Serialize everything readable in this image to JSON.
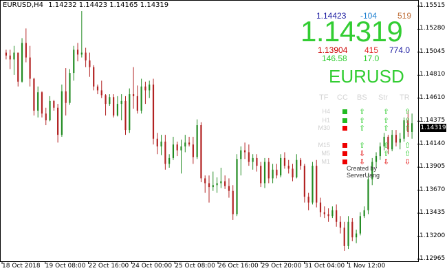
{
  "header": {
    "symbol": "EURUSD,H4",
    "ohlc": "1.14232 1.14423 1.14165 1.14319"
  },
  "price_axis": {
    "labels": [
      "1.15515",
      "1.15280",
      "1.15045",
      "1.14810",
      "1.14610",
      "1.14375",
      "1.14140",
      "1.13905",
      "1.13670",
      "1.13435",
      "1.13200",
      "1.12965"
    ],
    "current": "1.14319"
  },
  "time_axis": {
    "labels": [
      "18 Oct 2018",
      "19 Oct 08:00",
      "22 Oct 16:00",
      "24 Oct 00:00",
      "25 Oct 08:00",
      "26 Oct 16:00",
      "29 Oct 20:00",
      "31 Oct 04:00",
      "1 Nov 12:00"
    ]
  },
  "panel": {
    "ask": "1.14423",
    "change": "-104",
    "spread_pips": "519",
    "price": "1.14319",
    "low": "1.13904",
    "low_dist": "415",
    "high": "774.0",
    "range": "146.58",
    "spread": "17.0",
    "symbol": "EURUSD",
    "columns": [
      "TF",
      "CC",
      "BS",
      "Str",
      "TR"
    ],
    "timeframes": [
      {
        "tf": "H4",
        "cc": "green",
        "bs": "up",
        "str": "up",
        "tr": "up"
      },
      {
        "tf": "H1",
        "cc": "green",
        "bs": "up",
        "str": "up",
        "tr": "up"
      },
      {
        "tf": "M30",
        "cc": "red",
        "bs": "up",
        "str": "up",
        "tr": "up"
      },
      {
        "tf": "M15",
        "cc": "red",
        "bs": "up",
        "str": "up",
        "tr": "up"
      },
      {
        "tf": "M5",
        "cc": "red",
        "bs": "down",
        "str": "up",
        "tr": "up"
      },
      {
        "tf": "M1",
        "cc": "red",
        "bs": "down",
        "str": "down",
        "tr": "down"
      }
    ],
    "credit": "Created by ServerUang",
    "colors": {
      "up": "#32cd32",
      "down": "#e00000",
      "ask": "#1a1aa0",
      "change": "#1e7fd0",
      "spread_pips": "#c0703a",
      "low": "#cc0000",
      "low_dist": "#e02020",
      "high": "#1a1aa0",
      "range": "#32cd32",
      "spread": "#32cd32"
    }
  },
  "chart_data": {
    "type": "candlestick",
    "symbol": "EURUSD",
    "timeframe": "H4",
    "ylim": [
      1.129,
      1.1558
    ],
    "candles": [
      [
        1.1505,
        1.1508,
        1.1498,
        1.1502
      ],
      [
        1.1502,
        1.1508,
        1.1488,
        1.1498
      ],
      [
        1.1498,
        1.1512,
        1.1482,
        1.1505
      ],
      [
        1.1505,
        1.1505,
        1.147,
        1.1475
      ],
      [
        1.1475,
        1.152,
        1.1474,
        1.1515
      ],
      [
        1.1515,
        1.153,
        1.1495,
        1.15
      ],
      [
        1.15,
        1.1512,
        1.147,
        1.1478
      ],
      [
        1.1478,
        1.1479,
        1.144,
        1.1445
      ],
      [
        1.1445,
        1.147,
        1.1438,
        1.1464
      ],
      [
        1.1464,
        1.1465,
        1.1438,
        1.1442
      ],
      [
        1.1442,
        1.1448,
        1.143,
        1.1435
      ],
      [
        1.1435,
        1.146,
        1.1434,
        1.1455
      ],
      [
        1.1455,
        1.1456,
        1.1445,
        1.1448
      ],
      [
        1.1448,
        1.1452,
        1.1412,
        1.142
      ],
      [
        1.142,
        1.1472,
        1.1418,
        1.1465
      ],
      [
        1.1465,
        1.1489,
        1.144,
        1.1453
      ],
      [
        1.1453,
        1.1488,
        1.1451,
        1.1484
      ],
      [
        1.1484,
        1.1512,
        1.1476,
        1.1508
      ],
      [
        1.1508,
        1.1515,
        1.1496,
        1.1503
      ],
      [
        1.1503,
        1.1548,
        1.15,
        1.1505
      ],
      [
        1.1505,
        1.151,
        1.149,
        1.1497
      ],
      [
        1.1497,
        1.1505,
        1.148,
        1.149
      ],
      [
        1.149,
        1.1492,
        1.1466,
        1.147
      ],
      [
        1.147,
        1.1472,
        1.1462,
        1.1466
      ],
      [
        1.1466,
        1.1476,
        1.1458,
        1.1461
      ],
      [
        1.1461,
        1.1462,
        1.144,
        1.1452
      ],
      [
        1.1452,
        1.1462,
        1.145,
        1.1459
      ],
      [
        1.1459,
        1.1462,
        1.1438,
        1.144
      ],
      [
        1.144,
        1.146,
        1.1439,
        1.1452
      ],
      [
        1.1452,
        1.1462,
        1.1435,
        1.1455
      ],
      [
        1.1455,
        1.146,
        1.142,
        1.1425
      ],
      [
        1.1425,
        1.1468,
        1.1422,
        1.1462
      ],
      [
        1.1462,
        1.149,
        1.1447,
        1.146
      ],
      [
        1.146,
        1.1471,
        1.1442,
        1.1445
      ],
      [
        1.1445,
        1.1478,
        1.1442,
        1.147
      ],
      [
        1.147,
        1.1475,
        1.1452,
        1.1466
      ],
      [
        1.1466,
        1.1476,
        1.1458,
        1.1472
      ],
      [
        1.1472,
        1.1478,
        1.141,
        1.1416
      ],
      [
        1.1416,
        1.1422,
        1.14,
        1.1408
      ],
      [
        1.1408,
        1.142,
        1.1399,
        1.1413
      ],
      [
        1.1413,
        1.142,
        1.1384,
        1.139
      ],
      [
        1.139,
        1.14,
        1.1386,
        1.1396
      ],
      [
        1.1396,
        1.1418,
        1.1394,
        1.141
      ],
      [
        1.141,
        1.1413,
        1.1398,
        1.1404
      ],
      [
        1.1404,
        1.1415,
        1.138,
        1.1408
      ],
      [
        1.1408,
        1.142,
        1.1402,
        1.1412
      ],
      [
        1.1412,
        1.1418,
        1.1408,
        1.141
      ],
      [
        1.141,
        1.1418,
        1.139,
        1.1397
      ],
      [
        1.1397,
        1.1436,
        1.1395,
        1.143
      ],
      [
        1.143,
        1.1433,
        1.1371,
        1.1375
      ],
      [
        1.1375,
        1.1378,
        1.136,
        1.137
      ],
      [
        1.137,
        1.1378,
        1.135,
        1.1366
      ],
      [
        1.1366,
        1.1382,
        1.1362,
        1.1368
      ],
      [
        1.1368,
        1.1376,
        1.136,
        1.137
      ],
      [
        1.137,
        1.1386,
        1.1365,
        1.1372
      ],
      [
        1.1372,
        1.1378,
        1.1364,
        1.1367
      ],
      [
        1.1367,
        1.1375,
        1.1355,
        1.1362
      ],
      [
        1.1362,
        1.1368,
        1.1332,
        1.1338
      ],
      [
        1.1338,
        1.14,
        1.1336,
        1.1395
      ],
      [
        1.1395,
        1.1408,
        1.1378,
        1.1404
      ],
      [
        1.1404,
        1.1412,
        1.1395,
        1.1402
      ],
      [
        1.1402,
        1.141,
        1.1388,
        1.1392
      ],
      [
        1.1392,
        1.14,
        1.1384,
        1.1396
      ],
      [
        1.1396,
        1.14,
        1.1382,
        1.1388
      ],
      [
        1.1388,
        1.1392,
        1.1366,
        1.137
      ],
      [
        1.137,
        1.1396,
        1.1365,
        1.1392
      ],
      [
        1.1392,
        1.1396,
        1.137,
        1.1375
      ],
      [
        1.1375,
        1.139,
        1.137,
        1.1384
      ],
      [
        1.1384,
        1.139,
        1.1375,
        1.1378
      ],
      [
        1.1378,
        1.14,
        1.1376,
        1.1396
      ],
      [
        1.1396,
        1.1402,
        1.1385,
        1.1388
      ],
      [
        1.1388,
        1.1394,
        1.138,
        1.1385
      ],
      [
        1.1385,
        1.139,
        1.1372,
        1.1376
      ],
      [
        1.1376,
        1.14,
        1.1375,
        1.1394
      ],
      [
        1.1394,
        1.1396,
        1.1384,
        1.1388
      ],
      [
        1.1388,
        1.139,
        1.135,
        1.1356
      ],
      [
        1.1356,
        1.136,
        1.1342,
        1.135
      ],
      [
        1.135,
        1.1392,
        1.1348,
        1.1388
      ],
      [
        1.1388,
        1.1394,
        1.1345,
        1.135
      ],
      [
        1.135,
        1.1355,
        1.1335,
        1.134
      ],
      [
        1.134,
        1.1346,
        1.1334,
        1.1338
      ],
      [
        1.1338,
        1.1344,
        1.133,
        1.1336
      ],
      [
        1.1336,
        1.1346,
        1.1334,
        1.1342
      ],
      [
        1.1342,
        1.1348,
        1.1325,
        1.133
      ],
      [
        1.133,
        1.1336,
        1.1318,
        1.1324
      ],
      [
        1.1324,
        1.133,
        1.13,
        1.1305
      ],
      [
        1.1305,
        1.1336,
        1.1302,
        1.133
      ],
      [
        1.133,
        1.1334,
        1.131,
        1.1314
      ],
      [
        1.1314,
        1.1322,
        1.1308,
        1.1318
      ],
      [
        1.1318,
        1.134,
        1.1316,
        1.1336
      ],
      [
        1.1336,
        1.1346,
        1.1334,
        1.1342
      ],
      [
        1.1342,
        1.138,
        1.1338,
        1.1374
      ],
      [
        1.1374,
        1.1396,
        1.1368,
        1.1392
      ],
      [
        1.1392,
        1.1402,
        1.1386,
        1.1398
      ],
      [
        1.1398,
        1.1412,
        1.1394,
        1.1408
      ],
      [
        1.1408,
        1.1422,
        1.1404,
        1.1418
      ],
      [
        1.1418,
        1.142,
        1.14,
        1.1405
      ],
      [
        1.1405,
        1.1425,
        1.1403,
        1.142
      ],
      [
        1.142,
        1.1425,
        1.1408,
        1.1412
      ],
      [
        1.1412,
        1.1422,
        1.1405,
        1.1416
      ],
      [
        1.1416,
        1.1438,
        1.1413,
        1.1435
      ],
      [
        1.1435,
        1.1445,
        1.1418,
        1.1423
      ],
      [
        1.1423,
        1.1442,
        1.1416,
        1.1432
      ]
    ]
  }
}
